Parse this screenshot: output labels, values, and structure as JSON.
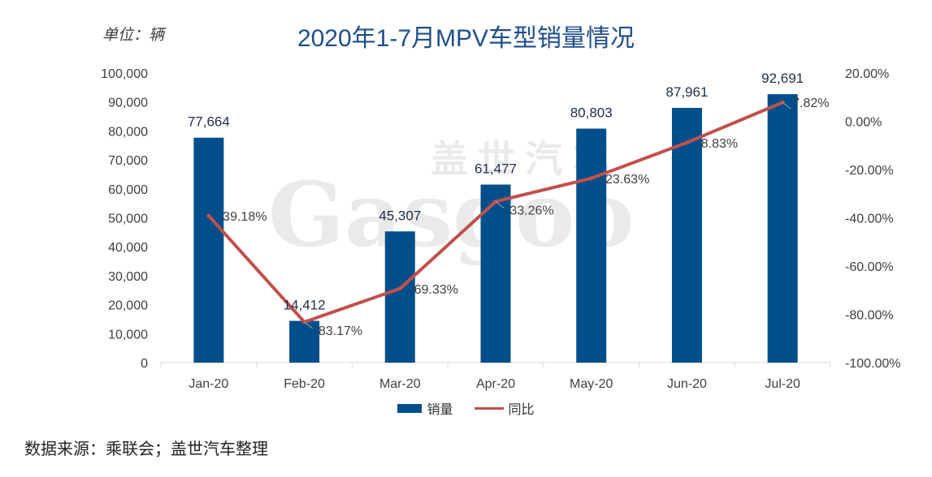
{
  "unit_label": "单位：辆",
  "title": "2020年1-7月MPV车型销量情况",
  "source": "数据来源：乘联会；盖世汽车整理",
  "watermark": {
    "cn": "盖世汽车",
    "en": "Gasgoo"
  },
  "legend": {
    "bar": "销量",
    "line": "同比"
  },
  "colors": {
    "bar": "#004f8b",
    "line": "#c0504d",
    "title": "#1f4e8c"
  },
  "chart_data": {
    "type": "bar",
    "title": "2020年1-7月MPV车型销量情况",
    "categories": [
      "Jan-20",
      "Feb-20",
      "Mar-20",
      "Apr-20",
      "May-20",
      "Jun-20",
      "Jul-20"
    ],
    "series": [
      {
        "name": "销量",
        "type": "bar",
        "axis": "left",
        "values": [
          77664,
          14412,
          45307,
          61477,
          80803,
          87961,
          92691
        ],
        "labels": [
          "77,664",
          "14,412",
          "45,307",
          "61,477",
          "80,803",
          "87,961",
          "92,691"
        ]
      },
      {
        "name": "同比",
        "type": "line",
        "axis": "right",
        "values": [
          -39.18,
          -83.17,
          -69.33,
          -33.26,
          -23.63,
          -8.83,
          7.82
        ],
        "labels": [
          "-39.18%",
          "-83.17%",
          "-69.33%",
          "-33.26%",
          "-23.63%",
          "-8.83%",
          "7.82%"
        ]
      }
    ],
    "y_left": {
      "min": 0,
      "max": 100000,
      "ticks": [
        "0",
        "10,000",
        "20,000",
        "30,000",
        "40,000",
        "50,000",
        "60,000",
        "70,000",
        "80,000",
        "90,000",
        "100,000"
      ]
    },
    "y_right": {
      "min": -100,
      "max": 20,
      "ticks": [
        "-100.00%",
        "-80.00%",
        "-60.00%",
        "-40.00%",
        "-20.00%",
        "0.00%",
        "20.00%"
      ]
    },
    "grid": false,
    "legend_position": "bottom"
  }
}
